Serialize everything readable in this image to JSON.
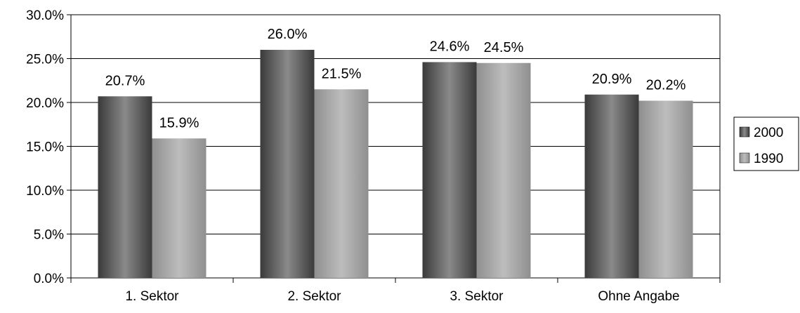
{
  "chart_data": {
    "type": "bar",
    "categories": [
      "1. Sektor",
      "2. Sektor",
      "3. Sektor",
      "Ohne Angabe"
    ],
    "series": [
      {
        "name": "2000",
        "values": [
          20.7,
          26.0,
          24.6,
          20.9
        ],
        "labels": [
          "20.7%",
          "26.0%",
          "24.6%",
          "20.9%"
        ],
        "color_dark": "#3a3a3a",
        "color_light": "#8a8a8a"
      },
      {
        "name": "1990",
        "values": [
          15.9,
          21.5,
          24.5,
          20.2
        ],
        "labels": [
          "15.9%",
          "21.5%",
          "24.5%",
          "20.2%"
        ],
        "color_dark": "#8f8f8f",
        "color_light": "#bdbdbd"
      }
    ],
    "ylim": [
      0,
      30
    ],
    "yticks": [
      "0.0%",
      "5.0%",
      "10.0%",
      "15.0%",
      "20.0%",
      "25.0%",
      "30.0%"
    ],
    "ytick_values": [
      0,
      5,
      10,
      15,
      20,
      25,
      30
    ],
    "grid": true,
    "legend_position": "right"
  }
}
